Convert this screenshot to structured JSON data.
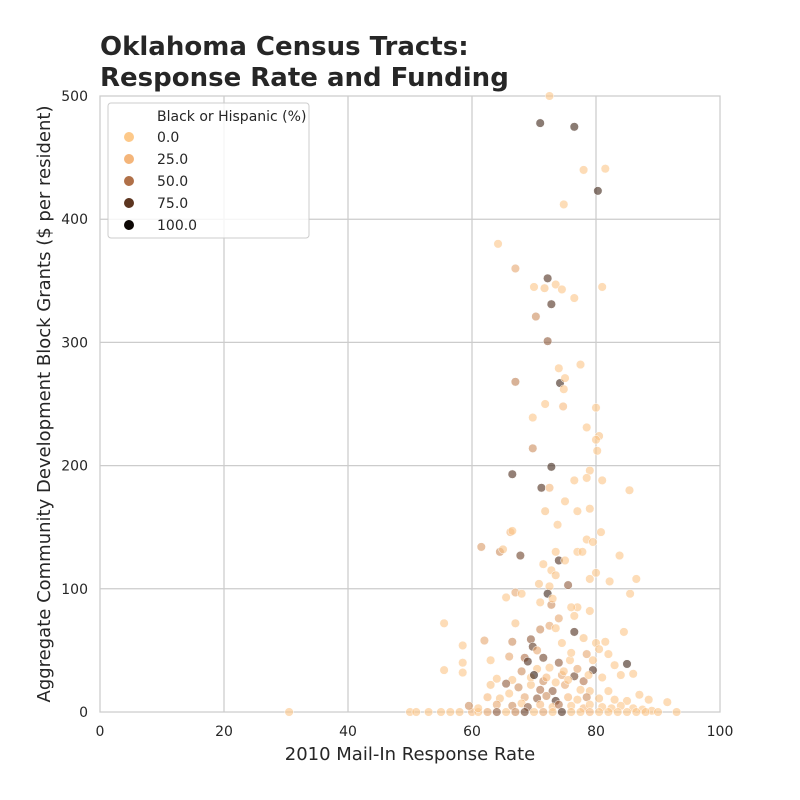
{
  "chart_data": {
    "type": "scatter",
    "title_lines": [
      "Oklahoma Census Tracts:",
      "Response Rate and Funding"
    ],
    "xlabel": "2010 Mail-In Response Rate",
    "ylabel": "Aggregate Community Development Block Grants ($ per resident)",
    "xlim": [
      0,
      100
    ],
    "ylim": [
      0,
      500
    ],
    "x_ticks": [
      0,
      20,
      40,
      60,
      80,
      100
    ],
    "y_ticks": [
      0,
      100,
      200,
      300,
      400,
      500
    ],
    "grid": true,
    "legend": {
      "title": "Black or Hispanic (%)",
      "placement": "top-left",
      "entries": [
        "0.0",
        "25.0",
        "50.0",
        "75.0",
        "100.0"
      ],
      "entry_values": [
        0,
        25,
        50,
        75,
        100
      ]
    },
    "color_scale": {
      "stops": [
        [
          0,
          "#fdc98a"
        ],
        [
          25,
          "#f4b57a"
        ],
        [
          50,
          "#b07048"
        ],
        [
          75,
          "#5c3520"
        ],
        [
          100,
          "#0d0705"
        ]
      ]
    },
    "point_opacity": 0.6,
    "points": [
      [
        72.5,
        500,
        2
      ],
      [
        71,
        478,
        85
      ],
      [
        76.5,
        475,
        85
      ],
      [
        78,
        440,
        5
      ],
      [
        81.5,
        441,
        3
      ],
      [
        80.3,
        423,
        85
      ],
      [
        74.8,
        412,
        3
      ],
      [
        64.2,
        380,
        5
      ],
      [
        67,
        360,
        30
      ],
      [
        72.2,
        352,
        80
      ],
      [
        70,
        345,
        5
      ],
      [
        71.7,
        344,
        10
      ],
      [
        73.5,
        347,
        5
      ],
      [
        74.5,
        343,
        5
      ],
      [
        76.5,
        336,
        5
      ],
      [
        81,
        345,
        5
      ],
      [
        72.8,
        331,
        80
      ],
      [
        70.3,
        321,
        40
      ],
      [
        72.2,
        301,
        60
      ],
      [
        77.5,
        282,
        5
      ],
      [
        74,
        279,
        5
      ],
      [
        67,
        268,
        45
      ],
      [
        74.2,
        267,
        85
      ],
      [
        75,
        271,
        5
      ],
      [
        74.8,
        262,
        5
      ],
      [
        80,
        247,
        5
      ],
      [
        71.8,
        250,
        5
      ],
      [
        74.7,
        248,
        20
      ],
      [
        69.8,
        239,
        5
      ],
      [
        78.5,
        231,
        5
      ],
      [
        80.5,
        224,
        10
      ],
      [
        80,
        221,
        5
      ],
      [
        69.8,
        214,
        40
      ],
      [
        80.2,
        212,
        5
      ],
      [
        66.5,
        193,
        80
      ],
      [
        72.8,
        199,
        85
      ],
      [
        79,
        196,
        5
      ],
      [
        78.5,
        190,
        5
      ],
      [
        76.5,
        188,
        5
      ],
      [
        81,
        188,
        5
      ],
      [
        71.2,
        182,
        80
      ],
      [
        72.5,
        182,
        25
      ],
      [
        85.4,
        180,
        5
      ],
      [
        75,
        171,
        5
      ],
      [
        77,
        163,
        5
      ],
      [
        79,
        165,
        5
      ],
      [
        71.8,
        163,
        10
      ],
      [
        73.8,
        152,
        5
      ],
      [
        66.2,
        146,
        25
      ],
      [
        66.5,
        147,
        5
      ],
      [
        80.8,
        146,
        5
      ],
      [
        78.5,
        140,
        5
      ],
      [
        79.5,
        138,
        5
      ],
      [
        61.5,
        134,
        35
      ],
      [
        64.5,
        130,
        40
      ],
      [
        65,
        132,
        10
      ],
      [
        67.8,
        127,
        70
      ],
      [
        73.5,
        130,
        5
      ],
      [
        77,
        130,
        5
      ],
      [
        77.8,
        130,
        5
      ],
      [
        83.8,
        127,
        5
      ],
      [
        74,
        123,
        80
      ],
      [
        75,
        123,
        5
      ],
      [
        71.5,
        120,
        5
      ],
      [
        72.8,
        115,
        5
      ],
      [
        73.5,
        111,
        10
      ],
      [
        80,
        113,
        5
      ],
      [
        86.5,
        108,
        5
      ],
      [
        70.8,
        104,
        10
      ],
      [
        72.5,
        102,
        5
      ],
      [
        75.5,
        103,
        60
      ],
      [
        79,
        108,
        5
      ],
      [
        82.2,
        106,
        5
      ],
      [
        67,
        97,
        30
      ],
      [
        68,
        96,
        5
      ],
      [
        72.2,
        96,
        85
      ],
      [
        71,
        89,
        5
      ],
      [
        77,
        85,
        5
      ],
      [
        79,
        82,
        5
      ],
      [
        72.8,
        87,
        40
      ],
      [
        76,
        85,
        5
      ],
      [
        65.5,
        93,
        5
      ],
      [
        85.5,
        96,
        5
      ],
      [
        55.5,
        72,
        5
      ],
      [
        62,
        58,
        30
      ],
      [
        58.5,
        54,
        5
      ],
      [
        66.5,
        57,
        40
      ],
      [
        67,
        72,
        10
      ],
      [
        69.5,
        59,
        60
      ],
      [
        71,
        67,
        40
      ],
      [
        72.5,
        70,
        30
      ],
      [
        73.5,
        68,
        5
      ],
      [
        76.5,
        65,
        80
      ],
      [
        78,
        60,
        10
      ],
      [
        80,
        56,
        5
      ],
      [
        81.5,
        57,
        5
      ],
      [
        84.5,
        65,
        5
      ],
      [
        69.8,
        53,
        75
      ],
      [
        74.5,
        56,
        5
      ],
      [
        82,
        47,
        5
      ],
      [
        58.5,
        40,
        5
      ],
      [
        63,
        42,
        5
      ],
      [
        66,
        45,
        30
      ],
      [
        68.5,
        44,
        50
      ],
      [
        69,
        41,
        80
      ],
      [
        71.5,
        44,
        70
      ],
      [
        74,
        40,
        60
      ],
      [
        75.8,
        42,
        5
      ],
      [
        79.5,
        42,
        5
      ],
      [
        85,
        39,
        85
      ],
      [
        83,
        38,
        5
      ],
      [
        55.5,
        34,
        5
      ],
      [
        58.5,
        32,
        5
      ],
      [
        64,
        27,
        5
      ],
      [
        66.5,
        26,
        10
      ],
      [
        68,
        33,
        40
      ],
      [
        70.5,
        35,
        10
      ],
      [
        72.5,
        36,
        5
      ],
      [
        74.5,
        30,
        30
      ],
      [
        76.5,
        29,
        70
      ],
      [
        78,
        25,
        50
      ],
      [
        79.5,
        34,
        80
      ],
      [
        81,
        28,
        5
      ],
      [
        84,
        30,
        5
      ],
      [
        86,
        31,
        5
      ],
      [
        63,
        22,
        10
      ],
      [
        65.5,
        23,
        60
      ],
      [
        67.5,
        20,
        40
      ],
      [
        69.5,
        22,
        10
      ],
      [
        71,
        18,
        50
      ],
      [
        73,
        17,
        60
      ],
      [
        75,
        22,
        30
      ],
      [
        77.5,
        18,
        5
      ],
      [
        79,
        17,
        10
      ],
      [
        82,
        17,
        5
      ],
      [
        87,
        14,
        5
      ],
      [
        88.5,
        10,
        5
      ],
      [
        91.5,
        8,
        5
      ],
      [
        62.5,
        12,
        20
      ],
      [
        64.5,
        11,
        10
      ],
      [
        66,
        15,
        5
      ],
      [
        68.5,
        12,
        30
      ],
      [
        70.5,
        11,
        60
      ],
      [
        72,
        13,
        40
      ],
      [
        73.5,
        9,
        80
      ],
      [
        75.5,
        12,
        20
      ],
      [
        77,
        10,
        5
      ],
      [
        78.5,
        12,
        40
      ],
      [
        80.5,
        11,
        10
      ],
      [
        83,
        10,
        5
      ],
      [
        85,
        9,
        5
      ],
      [
        64,
        6,
        30
      ],
      [
        66.5,
        5,
        40
      ],
      [
        68,
        7,
        5
      ],
      [
        69,
        4,
        60
      ],
      [
        71,
        6,
        20
      ],
      [
        73,
        4,
        10
      ],
      [
        74,
        6,
        50
      ],
      [
        76,
        5,
        5
      ],
      [
        78,
        3,
        20
      ],
      [
        79,
        6,
        5
      ],
      [
        81,
        4,
        5
      ],
      [
        82.5,
        3,
        5
      ],
      [
        84,
        5,
        5
      ],
      [
        86,
        3,
        5
      ],
      [
        87.5,
        2,
        5
      ],
      [
        89,
        1,
        5
      ],
      [
        93,
        0,
        5
      ],
      [
        30.5,
        0,
        5
      ],
      [
        50,
        0,
        5
      ],
      [
        51,
        0,
        5
      ],
      [
        53,
        0,
        5
      ],
      [
        55,
        0,
        5
      ],
      [
        56.5,
        0,
        5
      ],
      [
        58,
        0,
        10
      ],
      [
        60,
        0,
        20
      ],
      [
        61,
        0,
        5
      ],
      [
        62.5,
        0,
        30
      ],
      [
        64,
        0,
        60
      ],
      [
        65.5,
        0,
        5
      ],
      [
        67,
        0,
        40
      ],
      [
        68.5,
        0,
        70
      ],
      [
        70,
        0,
        5
      ],
      [
        71.5,
        0,
        30
      ],
      [
        73,
        0,
        5
      ],
      [
        74.5,
        0,
        80
      ],
      [
        76,
        0,
        10
      ],
      [
        77.5,
        0,
        5
      ],
      [
        79,
        0,
        20
      ],
      [
        80.5,
        0,
        5
      ],
      [
        82,
        0,
        5
      ],
      [
        83.5,
        0,
        5
      ],
      [
        85,
        0,
        5
      ],
      [
        86.5,
        0,
        5
      ],
      [
        88,
        0,
        5
      ],
      [
        90,
        0,
        5
      ],
      [
        59.5,
        5,
        40
      ],
      [
        61,
        3,
        5
      ],
      [
        69.5,
        28,
        5
      ],
      [
        71.5,
        25,
        40
      ],
      [
        73.5,
        24,
        5
      ],
      [
        75.5,
        26,
        5
      ],
      [
        77,
        35,
        30
      ],
      [
        78.5,
        47,
        30
      ],
      [
        80.5,
        51,
        5
      ],
      [
        74,
        76,
        30
      ],
      [
        73,
        92,
        5
      ],
      [
        76.5,
        78,
        5
      ],
      [
        70,
        30,
        90
      ],
      [
        72,
        28,
        20
      ],
      [
        74.8,
        33,
        5
      ],
      [
        76,
        48,
        5
      ],
      [
        78.8,
        30,
        5
      ],
      [
        70.5,
        50,
        30
      ]
    ]
  }
}
